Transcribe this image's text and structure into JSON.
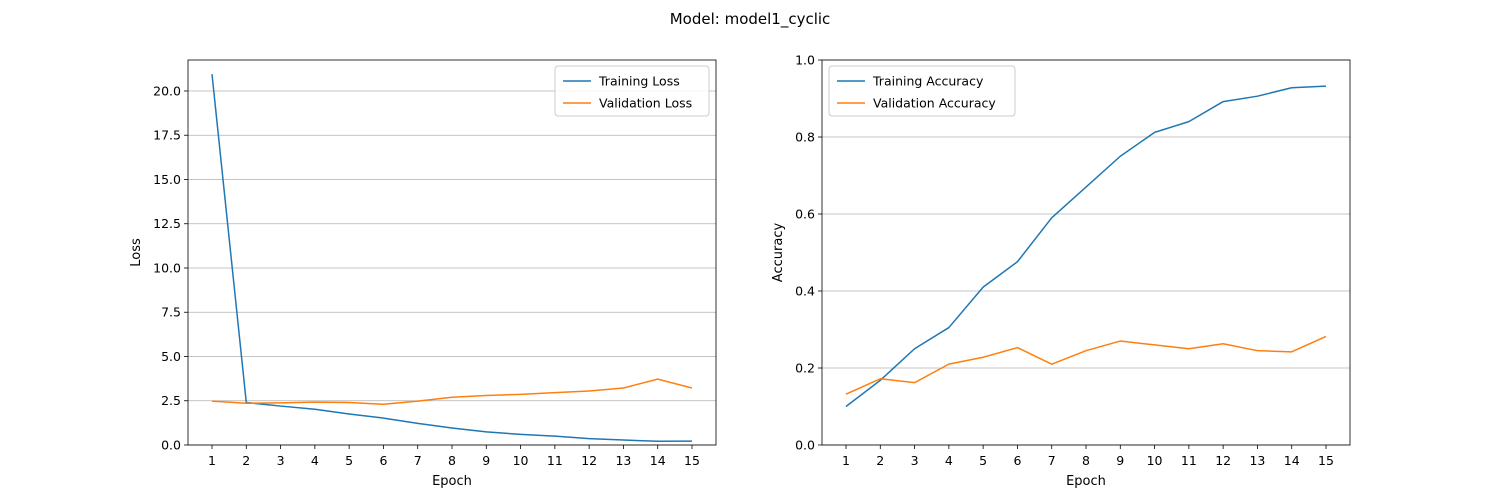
{
  "suptitle": "Model: model1_cyclic",
  "colors": {
    "training": "#1f77b4",
    "validation": "#ff7f0e",
    "grid": "#b0b0b0"
  },
  "chart_data": [
    {
      "type": "line",
      "xlabel": "Epoch",
      "ylabel": "Loss",
      "x": [
        1,
        2,
        3,
        4,
        5,
        6,
        7,
        8,
        9,
        10,
        11,
        12,
        13,
        14,
        15
      ],
      "xlim": [
        0.3,
        15.7
      ],
      "ylim": [
        0,
        21.75
      ],
      "yticks": [
        0.0,
        2.5,
        5.0,
        7.5,
        10.0,
        12.5,
        15.0,
        17.5,
        20.0
      ],
      "ytick_labels": [
        "0.0",
        "2.5",
        "5.0",
        "7.5",
        "10.0",
        "12.5",
        "15.0",
        "17.5",
        "20.0"
      ],
      "grid": "y",
      "legend": "top-right",
      "series": [
        {
          "name": "Training Loss",
          "color": "#1f77b4",
          "values": [
            20.95,
            2.4,
            2.2,
            2.02,
            1.75,
            1.52,
            1.22,
            0.96,
            0.74,
            0.6,
            0.5,
            0.36,
            0.28,
            0.21,
            0.22
          ]
        },
        {
          "name": "Validation Loss",
          "color": "#ff7f0e",
          "values": [
            2.48,
            2.36,
            2.38,
            2.42,
            2.4,
            2.3,
            2.48,
            2.7,
            2.8,
            2.86,
            2.96,
            3.05,
            3.22,
            3.72,
            3.22
          ]
        }
      ]
    },
    {
      "type": "line",
      "xlabel": "Epoch",
      "ylabel": "Accuracy",
      "x": [
        1,
        2,
        3,
        4,
        5,
        6,
        7,
        8,
        9,
        10,
        11,
        12,
        13,
        14,
        15
      ],
      "xlim": [
        0.3,
        15.7
      ],
      "ylim": [
        0,
        1.0
      ],
      "yticks": [
        0.0,
        0.2,
        0.4,
        0.6,
        0.8,
        1.0
      ],
      "ytick_labels": [
        "0.0",
        "0.2",
        "0.4",
        "0.6",
        "0.8",
        "1.0"
      ],
      "grid": "y",
      "legend": "top-left",
      "series": [
        {
          "name": "Training Accuracy",
          "color": "#1f77b4",
          "values": [
            0.1,
            0.168,
            0.25,
            0.305,
            0.41,
            0.476,
            0.59,
            0.67,
            0.75,
            0.812,
            0.84,
            0.892,
            0.906,
            0.928,
            0.932
          ]
        },
        {
          "name": "Validation Accuracy",
          "color": "#ff7f0e",
          "values": [
            0.132,
            0.172,
            0.162,
            0.21,
            0.228,
            0.253,
            0.21,
            0.245,
            0.27,
            0.26,
            0.25,
            0.263,
            0.245,
            0.242,
            0.282
          ]
        }
      ]
    }
  ]
}
